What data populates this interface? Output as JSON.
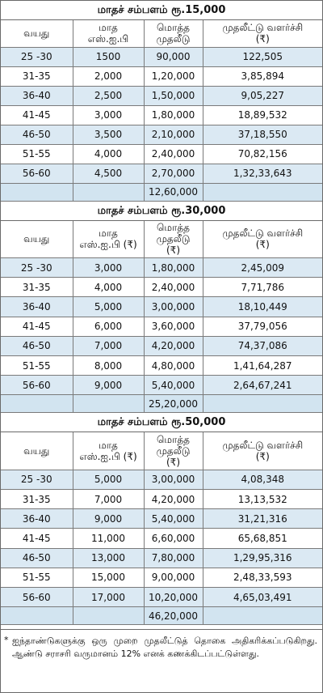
{
  "sections": [
    {
      "title": "மாதச் சம்பளம் ரூ.15,000",
      "headers": [
        "வயது",
        "மாத\nஎஸ்.ஐ.பி",
        "மொத்த\nமுதலீடு",
        "முதலீட்டு வளர்ச்சி\n(₹)"
      ],
      "rows": [
        [
          "25 -30",
          "1500",
          "90,000",
          "122,505"
        ],
        [
          "31-35",
          "2,000",
          "1,20,000",
          "3,85,894"
        ],
        [
          "36-40",
          "2,500",
          "1,50,000",
          "9,05,227"
        ],
        [
          "41-45",
          "3,000",
          "1,80,000",
          "18,89,532"
        ],
        [
          "46-50",
          "3,500",
          "2,10,000",
          "37,18,550"
        ],
        [
          "51-55",
          "4,000",
          "2,40,000",
          "70,82,156"
        ],
        [
          "56-60",
          "4,500",
          "2,70,000",
          "1,32,33,643"
        ]
      ],
      "total": "12,60,000"
    },
    {
      "title": "மாதச் சம்பளம் ரூ.30,000",
      "headers": [
        "வயது",
        "மாத\nஎஸ்.ஐ.பி (₹)",
        "மொத்த\nமுதலீடு\n(₹)",
        "முதலீட்டு வளர்ச்சி\n(₹)"
      ],
      "rows": [
        [
          "25 -30",
          "3,000",
          "1,80,000",
          "2,45,009"
        ],
        [
          "31-35",
          "4,000",
          "2,40,000",
          "7,71,786"
        ],
        [
          "36-40",
          "5,000",
          "3,00,000",
          "18,10,449"
        ],
        [
          "41-45",
          "6,000",
          "3,60,000",
          "37,79,056"
        ],
        [
          "46-50",
          "7,000",
          "4,20,000",
          "74,37,086"
        ],
        [
          "51-55",
          "8,000",
          "4,80,000",
          "1,41,64,287"
        ],
        [
          "56-60",
          "9,000",
          "5,40,000",
          "2,64,67,241"
        ]
      ],
      "total": "25,20,000"
    },
    {
      "title": "மாதச் சம்பளம் ரூ.50,000",
      "headers": [
        "வயது",
        "மாத\nஎஸ்.ஐ.பி (₹)",
        "மொத்த\nமுதலீடு\n(₹)",
        "முதலீட்டு வளர்ச்சி\n(₹)"
      ],
      "rows": [
        [
          "25 -30",
          "5,000",
          "3,00,000",
          "4,08,348"
        ],
        [
          "31-35",
          "7,000",
          "4,20,000",
          "13,13,532"
        ],
        [
          "36-40",
          "9,000",
          "5,40,000",
          "31,21,316"
        ],
        [
          "41-45",
          "11,000",
          "6,60,000",
          "65,68,851"
        ],
        [
          "46-50",
          "13,000",
          "7,80,000",
          "1,29,95,316"
        ],
        [
          "51-55",
          "15,000",
          "9,00,000",
          "2,48,33,593"
        ],
        [
          "56-60",
          "17,000",
          "10,20,000",
          "4,65,03,491"
        ]
      ],
      "total": "46,20,000"
    }
  ],
  "note": {
    "star": "*",
    "text": "ஐந்தாண்டுகளுக்கு ஒரு முறை முதலீட்டுத் தொகை அதிகரிக்கப்படுகிறது. ஆண்டு சராசரி வருமானம் 12% எனக் கணக்கிடப்பட்டுள்ளது."
  }
}
